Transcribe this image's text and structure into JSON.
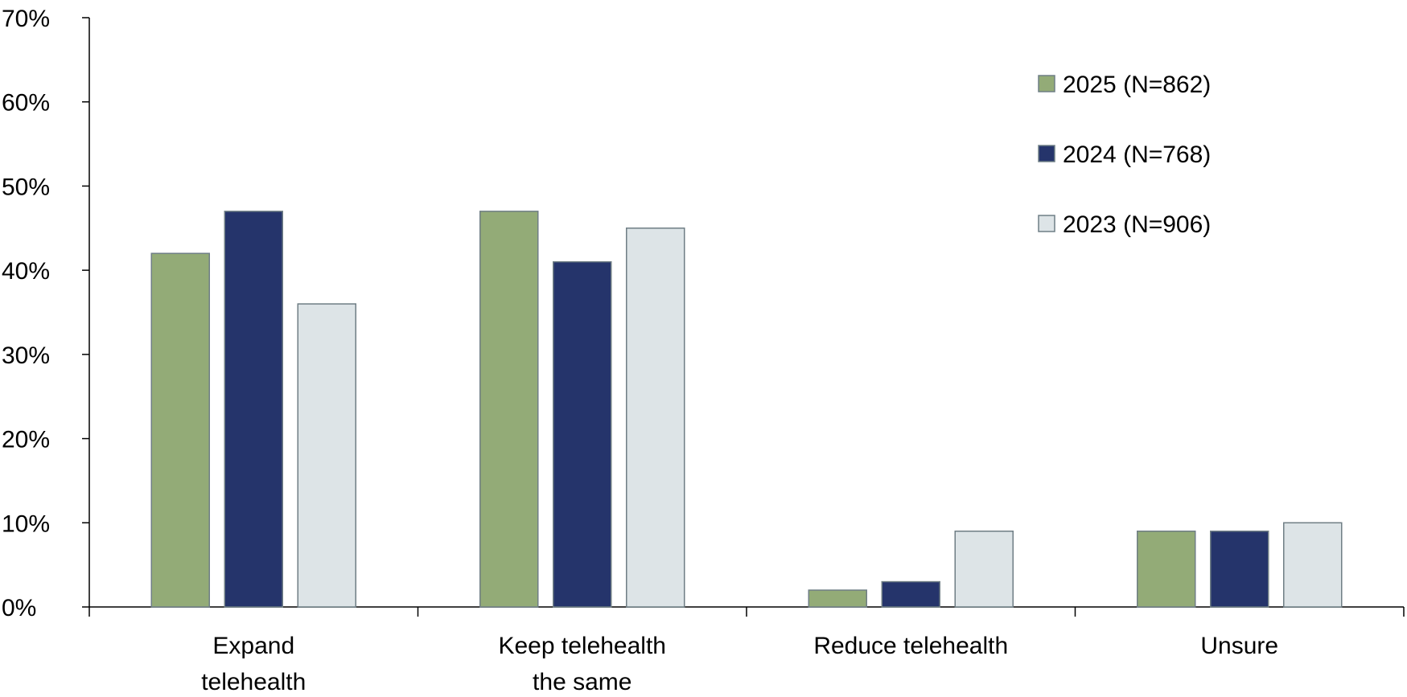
{
  "chart_data": {
    "type": "bar",
    "title": "",
    "xlabel": "",
    "ylabel": "",
    "ylim": [
      0,
      70
    ],
    "yticks": [
      "0%",
      "10%",
      "20%",
      "30%",
      "40%",
      "50%",
      "60%",
      "70%"
    ],
    "grid": false,
    "legend_position": "top-right",
    "categories": [
      [
        "Expand",
        "telehealth"
      ],
      [
        "Keep telehealth",
        "the same"
      ],
      [
        "Reduce telehealth"
      ],
      [
        "Unsure"
      ]
    ],
    "series": [
      {
        "name": "2025 (N=862)",
        "color": "#93ab77",
        "values": [
          42,
          47,
          2,
          9
        ]
      },
      {
        "name": "2024 (N=768)",
        "color": "#25346b",
        "values": [
          47,
          41,
          3,
          9
        ]
      },
      {
        "name": "2023 (N=906)",
        "color": "#dde4e7",
        "values": [
          36,
          45,
          9,
          10
        ]
      }
    ]
  }
}
